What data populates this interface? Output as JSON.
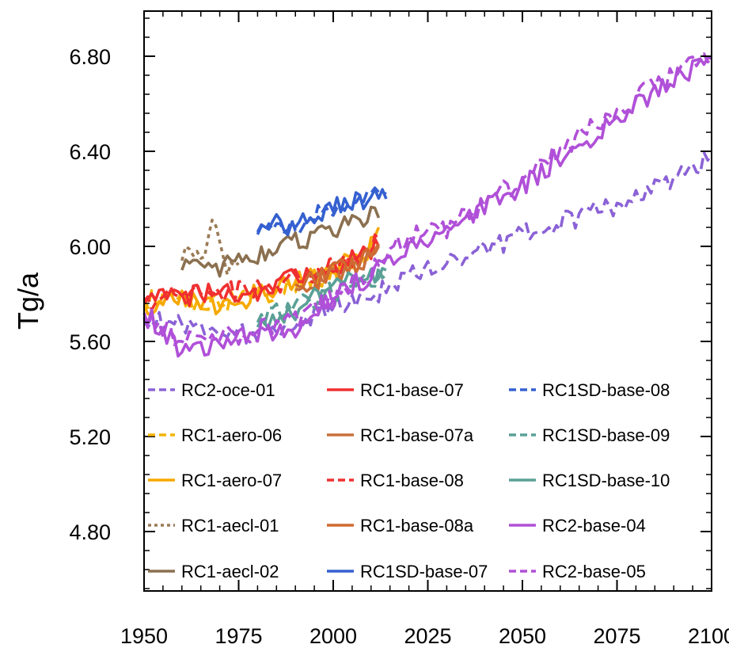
{
  "chart_data": {
    "type": "line",
    "title": "",
    "xlabel": "",
    "ylabel": "Tg/a",
    "xlim": [
      1950,
      2100
    ],
    "ylim": [
      4.55,
      6.99
    ],
    "xticks": [
      1950,
      1975,
      2000,
      2025,
      2050,
      2075,
      2100
    ],
    "xtick_labels": [
      "1950",
      "1975",
      "2000",
      "2025",
      "2050",
      "2075",
      "2100"
    ],
    "yticks": [
      4.8,
      5.2,
      5.6,
      6.0,
      6.4,
      6.8
    ],
    "ytick_labels": [
      "4.80",
      "5.20",
      "5.60",
      "6.00",
      "6.40",
      "6.80"
    ],
    "grid": false,
    "legend_position": "inside-bottom",
    "series": [
      {
        "name": "RC2-oce-01",
        "color": "#8b62d6",
        "dash": "dashed",
        "x": [
          1950,
          1960,
          1970,
          1980,
          1990,
          2000,
          2010,
          2015,
          2025,
          2035,
          2045,
          2055,
          2065,
          2075,
          2085,
          2095,
          2100
        ],
        "y": [
          5.69,
          5.67,
          5.62,
          5.64,
          5.68,
          5.76,
          5.79,
          5.84,
          5.92,
          5.97,
          6.01,
          6.08,
          6.12,
          6.17,
          6.25,
          6.31,
          6.39
        ]
      },
      {
        "name": "RC1-aero-06",
        "color": "#f4b400",
        "dash": "dashed",
        "x": [
          1950,
          1960,
          1970,
          1980,
          1990,
          2000,
          2005,
          2010,
          2012
        ],
        "y": [
          5.78,
          5.77,
          5.76,
          5.79,
          5.84,
          5.89,
          5.94,
          5.98,
          6.03
        ]
      },
      {
        "name": "RC1-aero-07",
        "color": "#f7a800",
        "dash": "solid",
        "x": [
          1950,
          1960,
          1970,
          1980,
          1990,
          2000,
          2005,
          2010,
          2012
        ],
        "y": [
          5.75,
          5.78,
          5.74,
          5.8,
          5.85,
          5.89,
          5.96,
          6.0,
          6.08
        ]
      },
      {
        "name": "RC1-aecl-01",
        "color": "#9a7b57",
        "dash": "dotted",
        "x": [
          1960,
          1963,
          1966,
          1969,
          1972,
          1975
        ],
        "y": [
          5.94,
          5.99,
          5.97,
          6.13,
          5.89,
          5.93
        ]
      },
      {
        "name": "RC1-aecl-02",
        "color": "#8b7050",
        "dash": "solid",
        "x": [
          1960,
          1970,
          1980,
          1990,
          2000,
          2010,
          2012
        ],
        "y": [
          5.9,
          5.91,
          5.97,
          6.02,
          6.07,
          6.13,
          6.12
        ]
      },
      {
        "name": "RC1-base-07",
        "color": "#f03030",
        "dash": "solid",
        "x": [
          1950,
          1960,
          1970,
          1980,
          1990,
          2000,
          2005,
          2010,
          2012
        ],
        "y": [
          5.76,
          5.79,
          5.81,
          5.81,
          5.87,
          5.89,
          5.95,
          5.98,
          6.0
        ]
      },
      {
        "name": "RC1-base-07a",
        "color": "#c8703c",
        "dash": "solid",
        "x": [
          1990,
          1995,
          2000,
          2005,
          2010,
          2012
        ],
        "y": [
          5.82,
          5.86,
          5.88,
          5.93,
          5.96,
          6.0
        ]
      },
      {
        "name": "RC1-base-08",
        "color": "#f03030",
        "dash": "dashed",
        "x": [
          1950,
          1960,
          1970,
          1980,
          1990,
          2000,
          2005,
          2010,
          2012
        ],
        "y": [
          5.77,
          5.8,
          5.8,
          5.83,
          5.86,
          5.91,
          5.94,
          6.0,
          6.03
        ]
      },
      {
        "name": "RC1-base-08a",
        "color": "#d06a30",
        "dash": "solid",
        "x": [
          1990,
          1995,
          2000,
          2005,
          2010,
          2012
        ],
        "y": [
          5.84,
          5.85,
          5.9,
          5.92,
          5.97,
          6.01
        ]
      },
      {
        "name": "RC1SD-base-07",
        "color": "#3560d0",
        "dash": "solid",
        "x": [
          1980,
          1985,
          1990,
          1995,
          2000,
          2005,
          2010,
          2014
        ],
        "y": [
          6.06,
          6.09,
          6.08,
          6.12,
          6.17,
          6.19,
          6.21,
          6.2
        ]
      },
      {
        "name": "RC1SD-base-08",
        "color": "#3560d0",
        "dash": "dashed",
        "x": [
          1980,
          1985,
          1990,
          1995,
          2000,
          2005,
          2010,
          2014
        ],
        "y": [
          6.05,
          6.1,
          6.06,
          6.13,
          6.16,
          6.2,
          6.2,
          6.22
        ]
      },
      {
        "name": "RC1SD-base-09",
        "color": "#5aa096",
        "dash": "dashed",
        "x": [
          1980,
          1985,
          1990,
          1995,
          2000,
          2005,
          2010,
          2014
        ],
        "y": [
          5.68,
          5.72,
          5.75,
          5.77,
          5.81,
          5.84,
          5.87,
          5.88
        ]
      },
      {
        "name": "RC1SD-base-10",
        "color": "#5aa096",
        "dash": "solid",
        "x": [
          1980,
          1985,
          1990,
          1995,
          2000,
          2005,
          2010,
          2014
        ],
        "y": [
          5.66,
          5.7,
          5.73,
          5.78,
          5.83,
          5.85,
          5.89,
          5.9
        ]
      },
      {
        "name": "RC2-base-04",
        "color": "#b050d8",
        "dash": "solid",
        "x": [
          1950,
          1960,
          1970,
          1980,
          1990,
          2000,
          2010,
          2020,
          2030,
          2040,
          2050,
          2060,
          2070,
          2080,
          2090,
          2100
        ],
        "y": [
          5.72,
          5.56,
          5.6,
          5.62,
          5.65,
          5.78,
          5.88,
          6.01,
          6.04,
          6.17,
          6.25,
          6.38,
          6.47,
          6.6,
          6.7,
          6.79
        ]
      },
      {
        "name": "RC2-base-05",
        "color": "#b050d8",
        "dash": "dashed",
        "x": [
          1950,
          1960,
          1970,
          1980,
          1990,
          2000,
          2010,
          2020,
          2030,
          2040,
          2050,
          2060,
          2070,
          2080,
          2090,
          2100
        ],
        "y": [
          5.7,
          5.6,
          5.62,
          5.64,
          5.7,
          5.78,
          5.9,
          6.05,
          6.06,
          6.19,
          6.28,
          6.41,
          6.52,
          6.62,
          6.73,
          6.79
        ]
      }
    ]
  }
}
